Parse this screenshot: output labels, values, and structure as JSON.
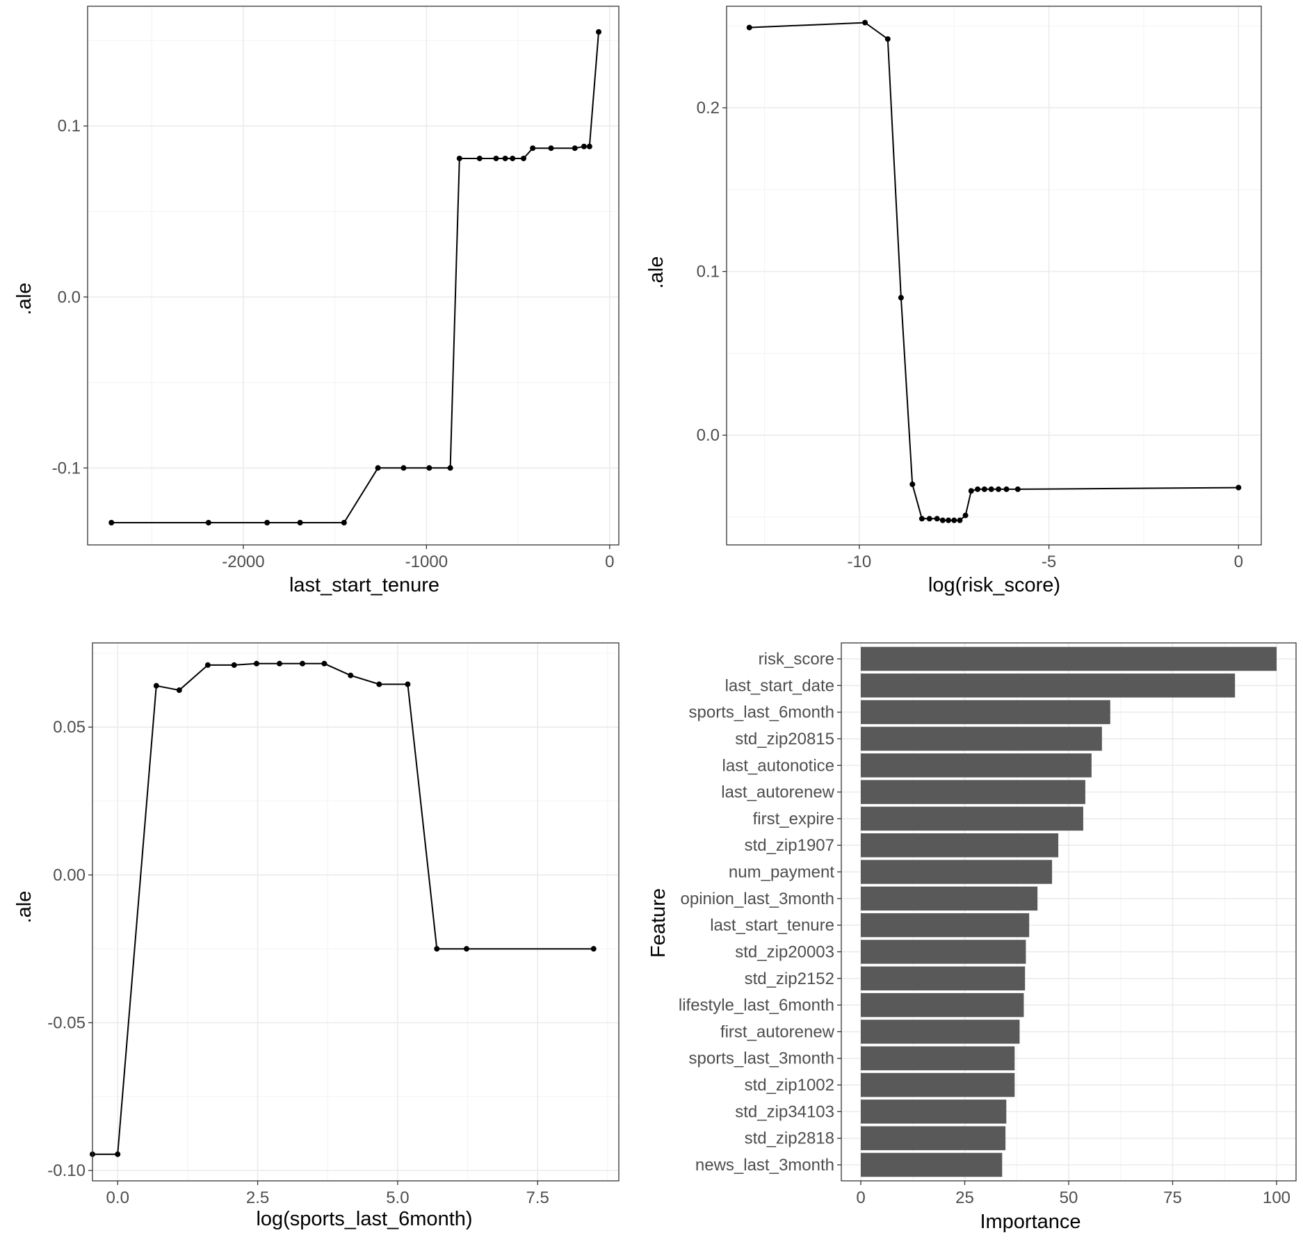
{
  "chart_data": [
    {
      "type": "line",
      "xlabel": "last_start_tenure",
      "ylabel": ".ale",
      "xlim": [
        -2850,
        50
      ],
      "ylim": [
        -0.145,
        0.17
      ],
      "x_ticks": [
        -2000,
        -1000,
        0
      ],
      "x_tick_labels": [
        "-2000",
        "-1000",
        "0"
      ],
      "y_ticks": [
        -0.1,
        0.0,
        0.1
      ],
      "y_tick_labels": [
        "-0.1",
        "0.0",
        "0.1"
      ],
      "x": [
        -2720,
        -2190,
        -1870,
        -1690,
        -1450,
        -1265,
        -1125,
        -985,
        -870,
        -820,
        -710,
        -620,
        -570,
        -530,
        -470,
        -420,
        -320,
        -190,
        -140,
        -110,
        -60
      ],
      "y": [
        -0.132,
        -0.132,
        -0.132,
        -0.132,
        -0.132,
        -0.1,
        -0.1,
        -0.1,
        -0.1,
        0.081,
        0.081,
        0.081,
        0.081,
        0.081,
        0.081,
        0.087,
        0.087,
        0.087,
        0.088,
        0.088,
        0.155
      ]
    },
    {
      "type": "line",
      "xlabel": "log(risk_score)",
      "ylabel": ".ale",
      "xlim": [
        -13.5,
        0.6
      ],
      "ylim": [
        -0.067,
        0.262
      ],
      "x_ticks": [
        -10,
        -5,
        0
      ],
      "x_tick_labels": [
        "-10",
        "-5",
        "0"
      ],
      "y_ticks": [
        0.0,
        0.1,
        0.2
      ],
      "y_tick_labels": [
        "0.0",
        "0.1",
        "0.2"
      ],
      "x": [
        -12.9,
        -9.85,
        -9.25,
        -8.9,
        -8.6,
        -8.35,
        -8.15,
        -7.95,
        -7.8,
        -7.65,
        -7.5,
        -7.35,
        -7.2,
        -7.05,
        -6.88,
        -6.7,
        -6.52,
        -6.33,
        -6.12,
        -5.82,
        0
      ],
      "y": [
        0.249,
        0.252,
        0.242,
        0.084,
        -0.03,
        -0.051,
        -0.051,
        -0.051,
        -0.052,
        -0.052,
        -0.052,
        -0.052,
        -0.049,
        -0.034,
        -0.033,
        -0.033,
        -0.033,
        -0.033,
        -0.033,
        -0.033,
        -0.032
      ]
    },
    {
      "type": "line",
      "xlabel": "log(sports_last_6month)",
      "ylabel": ".ale",
      "xlim": [
        -0.45,
        8.95
      ],
      "ylim": [
        -0.1035,
        0.0785
      ],
      "x_ticks": [
        0.0,
        2.5,
        5.0,
        7.5
      ],
      "x_tick_labels": [
        "0.0",
        "2.5",
        "5.0",
        "7.5"
      ],
      "y_ticks": [
        -0.1,
        -0.05,
        0.0,
        0.05
      ],
      "y_tick_labels": [
        "-0.10",
        "-0.05",
        "0.00",
        "0.05"
      ],
      "x": [
        -0.45,
        0.0,
        0.69,
        1.1,
        1.61,
        2.08,
        2.48,
        2.89,
        3.3,
        3.69,
        4.16,
        4.67,
        5.18,
        5.7,
        6.23,
        8.5
      ],
      "y": [
        -0.0945,
        -0.0945,
        0.064,
        0.0625,
        0.071,
        0.071,
        0.0715,
        0.0715,
        0.0715,
        0.0715,
        0.0675,
        0.0645,
        0.0645,
        -0.025,
        -0.025,
        -0.025
      ]
    },
    {
      "type": "bar",
      "orientation": "horizontal",
      "xlabel": "Importance",
      "ylabel": "Feature",
      "xlim": [
        0,
        100
      ],
      "x_ticks": [
        0,
        25,
        50,
        75,
        100
      ],
      "x_tick_labels": [
        "0",
        "25",
        "50",
        "75",
        "100"
      ],
      "categories": [
        "risk_score",
        "last_start_date",
        "sports_last_6month",
        "std_zip20815",
        "last_autonotice",
        "last_autorenew",
        "first_expire",
        "std_zip1907",
        "num_payment",
        "opinion_last_3month",
        "last_start_tenure",
        "std_zip20003",
        "std_zip2152",
        "lifestyle_last_6month",
        "first_autorenew",
        "sports_last_3month",
        "std_zip1002",
        "std_zip34103",
        "std_zip2818",
        "news_last_3month"
      ],
      "values": [
        100,
        90,
        60,
        58,
        55.5,
        54,
        53.5,
        47.5,
        46,
        42.5,
        40.5,
        39.7,
        39.5,
        39.2,
        38.2,
        37,
        37,
        35,
        34.8,
        34
      ]
    }
  ]
}
